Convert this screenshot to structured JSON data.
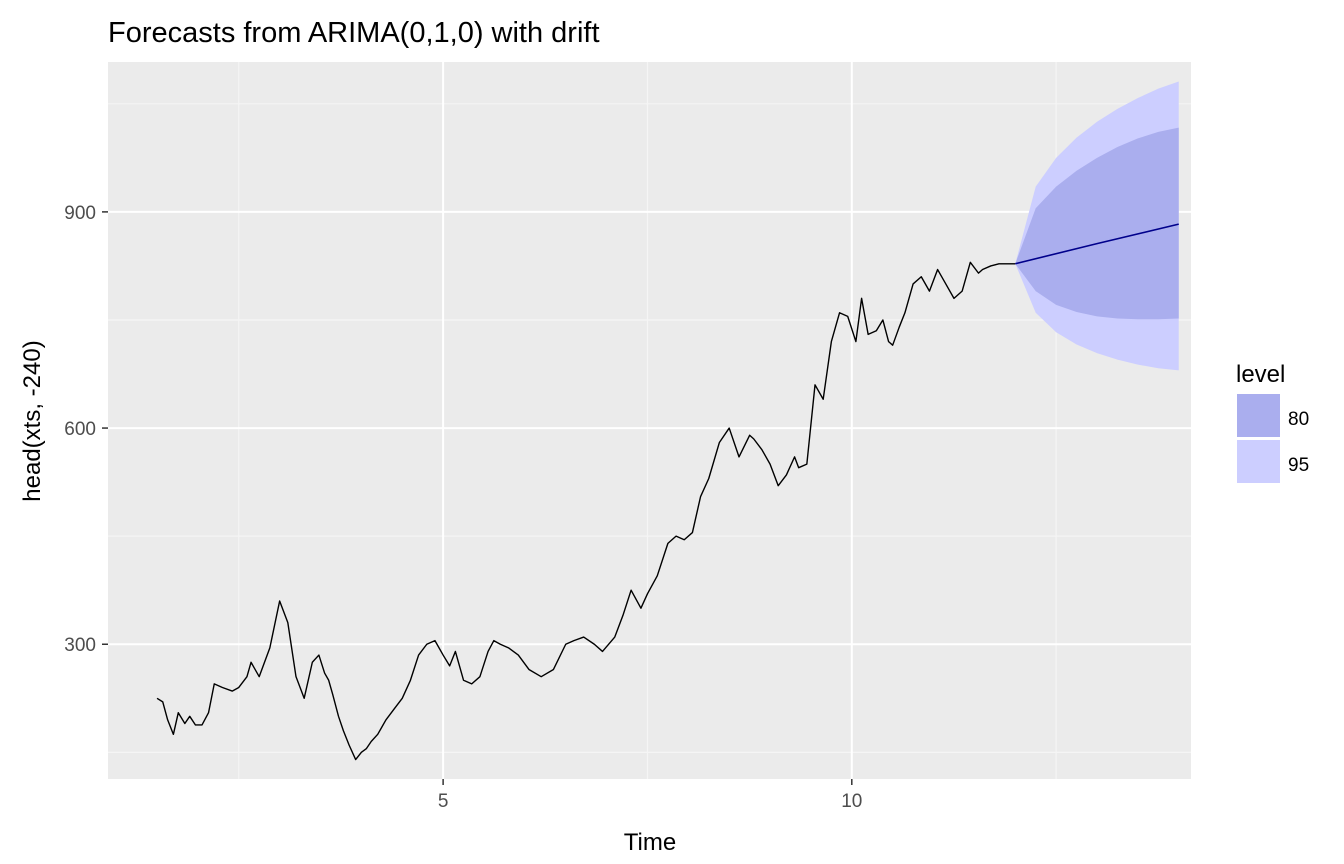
{
  "colors": {
    "panel_background": "#ebebeb",
    "grid_major": "#ffffff",
    "grid_minor": "#f5f5f5",
    "series_line": "#000000",
    "forecast_line": "#00008b",
    "band_80": "#aaaeee",
    "band_95": "#ccceff",
    "tick_label": "#4d4d4d"
  },
  "chart_data": {
    "type": "line",
    "title": "Forecasts from ARIMA(0,1,0) with drift",
    "xlabel": "Time",
    "ylabel": "head(xts, -240)",
    "xlim": [
      0.9,
      14.15
    ],
    "ylim": [
      113,
      1108
    ],
    "x_ticks": [
      5,
      10
    ],
    "y_ticks": [
      300,
      600,
      900
    ],
    "grid": true,
    "legend": {
      "title": "level",
      "position": "right",
      "entries": [
        {
          "label": "80",
          "color": "#aaaeee"
        },
        {
          "label": "95",
          "color": "#ccceff"
        }
      ]
    },
    "series": [
      {
        "values_x": [
          1.5,
          1.57,
          1.63,
          1.7,
          1.76,
          1.84,
          1.9,
          1.97,
          2.05,
          2.13,
          2.2,
          2.3,
          2.42,
          2.5,
          2.6,
          2.65,
          2.75,
          2.88,
          3.0,
          3.1,
          3.2,
          3.3,
          3.4,
          3.48,
          3.55,
          3.6,
          3.65,
          3.72,
          3.78,
          3.85,
          3.93,
          4.0,
          4.06,
          4.12,
          4.2,
          4.3,
          4.4,
          4.5,
          4.6,
          4.7,
          4.8,
          4.9,
          5.0,
          5.08,
          5.15,
          5.25,
          5.35,
          5.45,
          5.55,
          5.62,
          5.7,
          5.8,
          5.92,
          6.05,
          6.2,
          6.35,
          6.5,
          6.6,
          6.72,
          6.85,
          6.95,
          7.1,
          7.2,
          7.3,
          7.42,
          7.5,
          7.62,
          7.75,
          7.85,
          7.95,
          8.05,
          8.15,
          8.25,
          8.38,
          8.5,
          8.62,
          8.75,
          8.8,
          8.9,
          9.0,
          9.1,
          9.2,
          9.3,
          9.35,
          9.45,
          9.55,
          9.65,
          9.75,
          9.85,
          9.95,
          10.05,
          10.12,
          10.2,
          10.3,
          10.38,
          10.45,
          10.5,
          10.58,
          10.65,
          10.75,
          10.85,
          10.95,
          11.05,
          11.15,
          11.25,
          11.35,
          11.45,
          11.55,
          11.6,
          11.7,
          11.8,
          11.9,
          12.0
        ],
        "values_y": [
          225,
          220,
          195,
          175,
          205,
          190,
          200,
          188,
          188,
          205,
          245,
          240,
          235,
          240,
          255,
          275,
          255,
          295,
          360,
          330,
          255,
          225,
          275,
          285,
          260,
          250,
          230,
          200,
          180,
          160,
          140,
          150,
          155,
          165,
          175,
          195,
          210,
          225,
          250,
          285,
          300,
          305,
          285,
          270,
          290,
          250,
          245,
          255,
          290,
          305,
          300,
          295,
          285,
          265,
          255,
          265,
          300,
          305,
          310,
          300,
          290,
          310,
          340,
          375,
          350,
          370,
          395,
          440,
          450,
          445,
          455,
          505,
          530,
          580,
          600,
          560,
          590,
          585,
          570,
          550,
          520,
          535,
          560,
          545,
          550,
          660,
          640,
          720,
          760,
          755,
          720,
          780,
          730,
          735,
          750,
          720,
          715,
          740,
          760,
          800,
          810,
          790,
          820,
          800,
          780,
          790,
          830,
          815,
          820,
          825,
          828,
          828,
          828
        ],
        "values_x_note": "",
        "name": ""
      },
      {
        "values_x": [
          12.0,
          13.0,
          14.0
        ],
        "values_y": [
          828,
          856,
          883
        ],
        "name": ""
      }
    ],
    "bands": {
      "x": [
        12.0,
        12.25,
        12.5,
        12.75,
        13.0,
        13.25,
        13.5,
        13.75,
        14.0
      ],
      "lo80": [
        828,
        790,
        771,
        761,
        755,
        752,
        751,
        751,
        752
      ],
      "hi80": [
        828,
        905,
        935,
        957,
        975,
        990,
        1002,
        1011,
        1017
      ],
      "lo95": [
        828,
        760,
        733,
        716,
        704,
        695,
        688,
        683,
        680
      ],
      "hi95": [
        828,
        935,
        975,
        1003,
        1025,
        1043,
        1058,
        1071,
        1081
      ]
    }
  }
}
